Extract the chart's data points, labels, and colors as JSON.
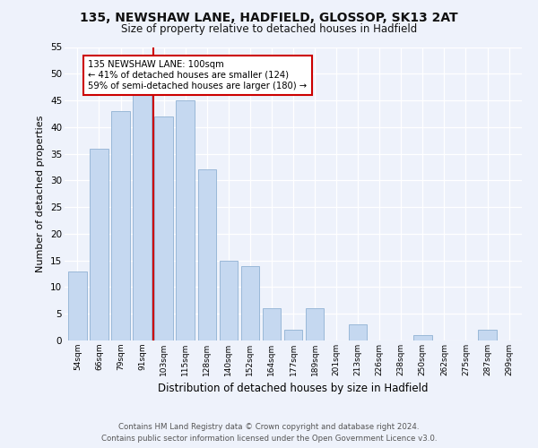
{
  "title": "135, NEWSHAW LANE, HADFIELD, GLOSSOP, SK13 2AT",
  "subtitle": "Size of property relative to detached houses in Hadfield",
  "xlabel": "Distribution of detached houses by size in Hadfield",
  "ylabel": "Number of detached properties",
  "bin_labels": [
    "54sqm",
    "66sqm",
    "79sqm",
    "91sqm",
    "103sqm",
    "115sqm",
    "128sqm",
    "140sqm",
    "152sqm",
    "164sqm",
    "177sqm",
    "189sqm",
    "201sqm",
    "213sqm",
    "226sqm",
    "238sqm",
    "250sqm",
    "262sqm",
    "275sqm",
    "287sqm",
    "299sqm"
  ],
  "bar_values": [
    13,
    36,
    43,
    46,
    42,
    45,
    32,
    15,
    14,
    6,
    2,
    6,
    0,
    3,
    0,
    0,
    1,
    0,
    0,
    2,
    0
  ],
  "bar_color": "#c5d8f0",
  "bar_edge_color": "#9ab8d8",
  "red_line_index": 3.5,
  "marker_label": "135 NEWSHAW LANE: 100sqm",
  "annotation_line1": "← 41% of detached houses are smaller (124)",
  "annotation_line2": "59% of semi-detached houses are larger (180) →",
  "annotation_box_color": "#ffffff",
  "annotation_box_edge_color": "#cc0000",
  "marker_line_color": "#cc0000",
  "ylim": [
    0,
    55
  ],
  "yticks": [
    0,
    5,
    10,
    15,
    20,
    25,
    30,
    35,
    40,
    45,
    50,
    55
  ],
  "footer_line1": "Contains HM Land Registry data © Crown copyright and database right 2024.",
  "footer_line2": "Contains public sector information licensed under the Open Government Licence v3.0.",
  "bg_color": "#eef2fb"
}
